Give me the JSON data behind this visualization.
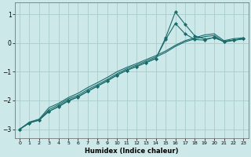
{
  "xlabel": "Humidex (Indice chaleur)",
  "bg_color": "#cce8e8",
  "grid_color": "#aacccc",
  "line_color": "#1a6b6b",
  "xlim": [
    -0.5,
    23.5
  ],
  "ylim": [
    -3.3,
    1.4
  ],
  "yticks": [
    -3,
    -2,
    -1,
    0,
    1
  ],
  "xticks": [
    0,
    1,
    2,
    3,
    4,
    5,
    6,
    7,
    8,
    9,
    10,
    11,
    12,
    13,
    14,
    15,
    16,
    17,
    18,
    19,
    20,
    21,
    22,
    23
  ],
  "series": [
    {
      "x": [
        0,
        1,
        2,
        3,
        4,
        5,
        6,
        7,
        8,
        9,
        10,
        11,
        12,
        13,
        14,
        15,
        16,
        17,
        18,
        19,
        20,
        21,
        22,
        23
      ],
      "y": [
        -3.0,
        -2.75,
        -2.65,
        -2.25,
        -2.1,
        -1.9,
        -1.75,
        -1.55,
        -1.38,
        -1.2,
        -1.0,
        -0.85,
        -0.72,
        -0.58,
        -0.44,
        -0.28,
        -0.08,
        0.08,
        0.18,
        0.28,
        0.32,
        0.08,
        0.15,
        0.18
      ],
      "marker": false,
      "lw": 0.8
    },
    {
      "x": [
        0,
        1,
        2,
        3,
        4,
        5,
        6,
        7,
        8,
        9,
        10,
        11,
        12,
        13,
        14,
        15,
        16,
        17,
        18,
        19,
        20,
        21,
        22,
        23
      ],
      "y": [
        -3.0,
        -2.78,
        -2.68,
        -2.32,
        -2.15,
        -1.95,
        -1.82,
        -1.62,
        -1.45,
        -1.27,
        -1.07,
        -0.9,
        -0.77,
        -0.63,
        -0.49,
        -0.33,
        -0.12,
        0.04,
        0.14,
        0.22,
        0.26,
        0.03,
        0.09,
        0.14
      ],
      "marker": false,
      "lw": 0.8
    },
    {
      "x": [
        0,
        1,
        2,
        3,
        4,
        5,
        6,
        7,
        8,
        9,
        10,
        11,
        12,
        13,
        14,
        15,
        16,
        17,
        18,
        19,
        20,
        21,
        22,
        23
      ],
      "y": [
        -3.0,
        -2.78,
        -2.68,
        -2.38,
        -2.2,
        -2.0,
        -1.87,
        -1.68,
        -1.5,
        -1.32,
        -1.12,
        -0.95,
        -0.82,
        -0.68,
        -0.54,
        0.12,
        0.68,
        0.32,
        0.12,
        0.1,
        0.2,
        0.05,
        0.1,
        0.15
      ],
      "marker": true,
      "lw": 0.8
    },
    {
      "x": [
        0,
        1,
        2,
        3,
        4,
        5,
        6,
        7,
        8,
        9,
        10,
        11,
        12,
        13,
        14,
        15,
        16,
        17,
        18,
        19,
        20,
        21,
        22,
        23
      ],
      "y": [
        -3.0,
        -2.78,
        -2.68,
        -2.38,
        -2.22,
        -2.02,
        -1.88,
        -1.68,
        -1.5,
        -1.32,
        -1.12,
        -0.95,
        -0.82,
        -0.68,
        -0.54,
        0.18,
        1.08,
        0.65,
        0.25,
        0.14,
        0.18,
        0.05,
        0.1,
        0.15
      ],
      "marker": true,
      "lw": 0.8
    }
  ]
}
